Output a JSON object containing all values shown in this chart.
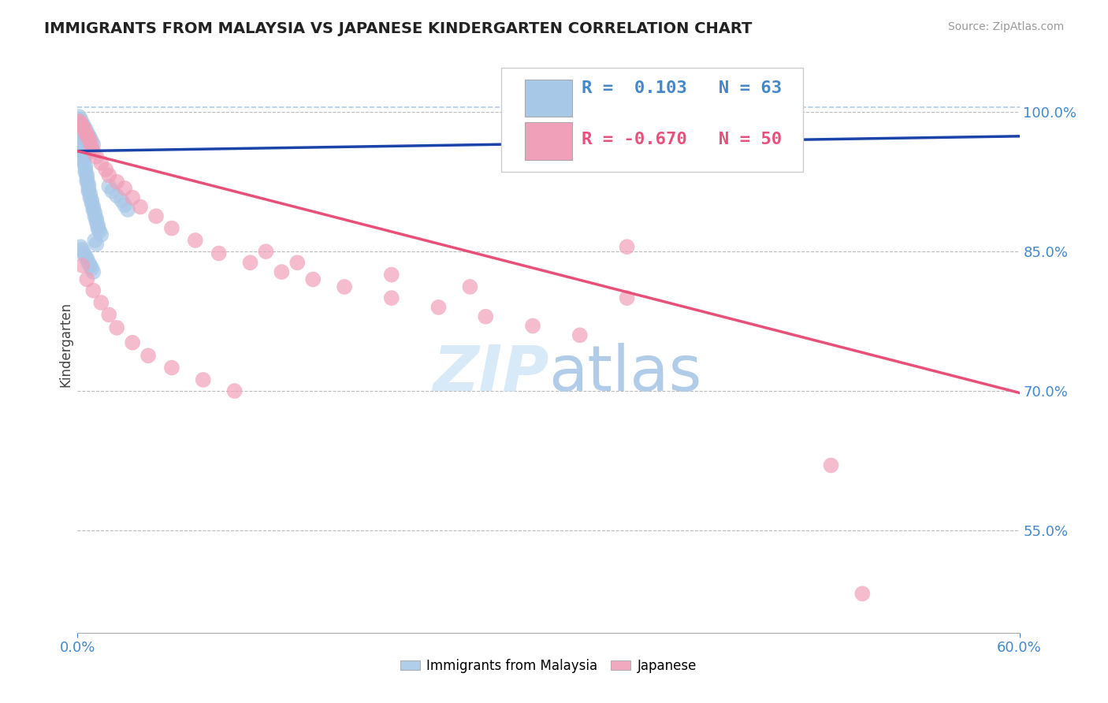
{
  "title": "IMMIGRANTS FROM MALAYSIA VS JAPANESE KINDERGARTEN CORRELATION CHART",
  "source": "Source: ZipAtlas.com",
  "ylabel": "Kindergarten",
  "legend_labels": [
    "Immigrants from Malaysia",
    "Japanese"
  ],
  "r_blue": 0.103,
  "n_blue": 63,
  "r_pink": -0.67,
  "n_pink": 50,
  "blue_color": "#a8c8e8",
  "pink_color": "#f0a0b8",
  "blue_line_color": "#1a44aa",
  "pink_line_color": "#e8507a",
  "xlim": [
    0.0,
    0.6
  ],
  "ylim": [
    0.44,
    1.06
  ],
  "blue_dots_x": [
    0.001,
    0.001,
    0.002,
    0.002,
    0.002,
    0.003,
    0.003,
    0.003,
    0.003,
    0.004,
    0.004,
    0.004,
    0.004,
    0.005,
    0.005,
    0.005,
    0.006,
    0.006,
    0.006,
    0.007,
    0.007,
    0.007,
    0.008,
    0.008,
    0.009,
    0.009,
    0.01,
    0.01,
    0.011,
    0.011,
    0.012,
    0.012,
    0.013,
    0.013,
    0.014,
    0.015,
    0.001,
    0.002,
    0.003,
    0.004,
    0.005,
    0.006,
    0.007,
    0.008,
    0.009,
    0.01,
    0.011,
    0.012,
    0.002,
    0.003,
    0.004,
    0.005,
    0.006,
    0.007,
    0.008,
    0.009,
    0.01,
    0.02,
    0.022,
    0.025,
    0.028,
    0.03,
    0.032
  ],
  "blue_dots_y": [
    0.99,
    0.985,
    0.98,
    0.975,
    0.97,
    0.968,
    0.965,
    0.962,
    0.958,
    0.955,
    0.952,
    0.948,
    0.945,
    0.942,
    0.938,
    0.935,
    0.932,
    0.928,
    0.925,
    0.922,
    0.918,
    0.915,
    0.912,
    0.908,
    0.905,
    0.902,
    0.898,
    0.895,
    0.892,
    0.888,
    0.885,
    0.882,
    0.878,
    0.875,
    0.872,
    0.868,
    0.995,
    0.992,
    0.988,
    0.985,
    0.982,
    0.978,
    0.975,
    0.972,
    0.968,
    0.965,
    0.862,
    0.858,
    0.855,
    0.852,
    0.848,
    0.845,
    0.842,
    0.838,
    0.835,
    0.832,
    0.828,
    0.92,
    0.915,
    0.91,
    0.905,
    0.9,
    0.895
  ],
  "pink_dots_x": [
    0.001,
    0.002,
    0.003,
    0.004,
    0.005,
    0.006,
    0.007,
    0.008,
    0.009,
    0.01,
    0.012,
    0.015,
    0.018,
    0.02,
    0.025,
    0.03,
    0.035,
    0.04,
    0.05,
    0.06,
    0.075,
    0.09,
    0.11,
    0.13,
    0.15,
    0.17,
    0.2,
    0.23,
    0.26,
    0.29,
    0.32,
    0.35,
    0.003,
    0.006,
    0.01,
    0.015,
    0.02,
    0.025,
    0.035,
    0.045,
    0.06,
    0.08,
    0.1,
    0.12,
    0.14,
    0.2,
    0.25,
    0.35,
    0.48,
    0.5
  ],
  "pink_dots_y": [
    0.99,
    0.988,
    0.985,
    0.982,
    0.978,
    0.975,
    0.972,
    0.968,
    0.962,
    0.958,
    0.952,
    0.945,
    0.938,
    0.932,
    0.925,
    0.918,
    0.908,
    0.898,
    0.888,
    0.875,
    0.862,
    0.848,
    0.838,
    0.828,
    0.82,
    0.812,
    0.8,
    0.79,
    0.78,
    0.77,
    0.76,
    0.855,
    0.835,
    0.82,
    0.808,
    0.795,
    0.782,
    0.768,
    0.752,
    0.738,
    0.725,
    0.712,
    0.7,
    0.85,
    0.838,
    0.825,
    0.812,
    0.8,
    0.62,
    0.482
  ],
  "blue_trend_x": [
    0.0,
    0.6
  ],
  "blue_trend_y": [
    0.958,
    0.974
  ],
  "pink_trend_x": [
    0.0,
    0.6
  ],
  "pink_trend_y": [
    0.958,
    0.698
  ],
  "dash_line_y": 1.005,
  "y_ticks_right": [
    0.55,
    0.7,
    0.85,
    1.0
  ],
  "y_tick_labels_right": [
    "55.0%",
    "70.0%",
    "85.0%",
    "100.0%"
  ],
  "background_color": "#ffffff",
  "grid_color": "#bbbbbb",
  "title_color": "#222222",
  "axis_color": "#4488cc",
  "watermark_zip_color": "#d8eaf8",
  "watermark_atlas_color": "#b0cce8"
}
